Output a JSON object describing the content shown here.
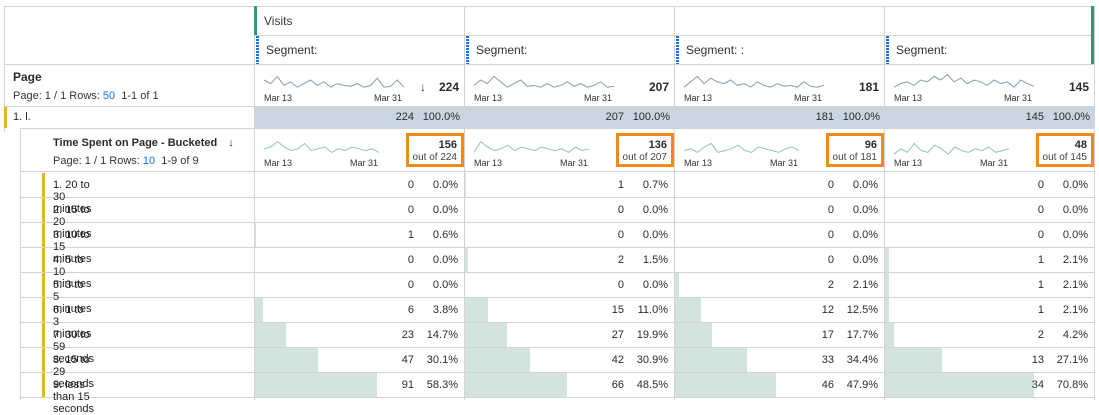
{
  "header": {
    "metric": "Visits",
    "segments": [
      {
        "label": "Segment:"
      },
      {
        "label": "Segment:"
      },
      {
        "label": "Segment: :"
      },
      {
        "label": "Segment:"
      }
    ]
  },
  "page_dim": {
    "title": "Page",
    "page_label": "Page: 1 / 1",
    "rows_label": "Rows:",
    "rows_value": "50",
    "range": "1-1 of 1",
    "sort_icon": "arrow-down-icon",
    "totals": [
      "224",
      "207",
      "181",
      "145"
    ],
    "date_start": "Mar 13",
    "date_end": "Mar 31"
  },
  "row1": {
    "label": "1. l.",
    "cells": [
      {
        "num": "224",
        "pct": "100.0%"
      },
      {
        "num": "207",
        "pct": "100.0%"
      },
      {
        "num": "181",
        "pct": "100.0%"
      },
      {
        "num": "145",
        "pct": "100.0%"
      }
    ]
  },
  "sub_dim": {
    "title": "Time Spent on Page - Bucketed",
    "page_label": "Page: 1 / 1",
    "rows_label": "Rows:",
    "rows_value": "10",
    "range": "1-9 of 9",
    "sort_icon": "arrow-down-icon",
    "totals": [
      {
        "num": "156",
        "out": "out of 224"
      },
      {
        "num": "136",
        "out": "out of 207"
      },
      {
        "num": "96",
        "out": "out of 181"
      },
      {
        "num": "48",
        "out": "out of 145"
      }
    ],
    "date_start": "Mar 13",
    "date_end": "Mar 31"
  },
  "rows": [
    {
      "label": "1.  20 to 30 minutes",
      "cells": [
        {
          "num": "0",
          "pct": "0.0%",
          "frac": 0
        },
        {
          "num": "1",
          "pct": "0.7%",
          "frac": 0.007
        },
        {
          "num": "0",
          "pct": "0.0%",
          "frac": 0
        },
        {
          "num": "0",
          "pct": "0.0%",
          "frac": 0
        }
      ]
    },
    {
      "label": "2.  15 to 20 minutes",
      "cells": [
        {
          "num": "0",
          "pct": "0.0%",
          "frac": 0
        },
        {
          "num": "0",
          "pct": "0.0%",
          "frac": 0
        },
        {
          "num": "0",
          "pct": "0.0%",
          "frac": 0
        },
        {
          "num": "0",
          "pct": "0.0%",
          "frac": 0
        }
      ]
    },
    {
      "label": "3.  10 to 15 minutes",
      "cells": [
        {
          "num": "1",
          "pct": "0.6%",
          "frac": 0.006
        },
        {
          "num": "0",
          "pct": "0.0%",
          "frac": 0
        },
        {
          "num": "0",
          "pct": "0.0%",
          "frac": 0
        },
        {
          "num": "0",
          "pct": "0.0%",
          "frac": 0
        }
      ]
    },
    {
      "label": "4.  5 to 10 minutes",
      "cells": [
        {
          "num": "0",
          "pct": "0.0%",
          "frac": 0
        },
        {
          "num": "2",
          "pct": "1.5%",
          "frac": 0.015
        },
        {
          "num": "0",
          "pct": "0.0%",
          "frac": 0
        },
        {
          "num": "1",
          "pct": "2.1%",
          "frac": 0.021
        }
      ]
    },
    {
      "label": "5.  3 to 5 minutes",
      "cells": [
        {
          "num": "0",
          "pct": "0.0%",
          "frac": 0
        },
        {
          "num": "0",
          "pct": "0.0%",
          "frac": 0
        },
        {
          "num": "2",
          "pct": "2.1%",
          "frac": 0.021
        },
        {
          "num": "1",
          "pct": "2.1%",
          "frac": 0.021
        }
      ]
    },
    {
      "label": "6.  1 to 3 minutes",
      "cells": [
        {
          "num": "6",
          "pct": "3.8%",
          "frac": 0.038
        },
        {
          "num": "15",
          "pct": "11.0%",
          "frac": 0.11
        },
        {
          "num": "12",
          "pct": "12.5%",
          "frac": 0.125
        },
        {
          "num": "1",
          "pct": "2.1%",
          "frac": 0.021
        }
      ]
    },
    {
      "label": "7.  30 to 59 seconds",
      "cells": [
        {
          "num": "23",
          "pct": "14.7%",
          "frac": 0.147
        },
        {
          "num": "27",
          "pct": "19.9%",
          "frac": 0.199
        },
        {
          "num": "17",
          "pct": "17.7%",
          "frac": 0.177
        },
        {
          "num": "2",
          "pct": "4.2%",
          "frac": 0.042
        }
      ]
    },
    {
      "label": "8.  15 to 29 seconds",
      "cells": [
        {
          "num": "47",
          "pct": "30.1%",
          "frac": 0.301
        },
        {
          "num": "42",
          "pct": "30.9%",
          "frac": 0.309
        },
        {
          "num": "33",
          "pct": "34.4%",
          "frac": 0.344
        },
        {
          "num": "13",
          "pct": "27.1%",
          "frac": 0.271
        }
      ]
    },
    {
      "label": "9.  less than 15 seconds",
      "cells": [
        {
          "num": "91",
          "pct": "58.3%",
          "frac": 0.583
        },
        {
          "num": "66",
          "pct": "48.5%",
          "frac": 0.485
        },
        {
          "num": "46",
          "pct": "47.9%",
          "frac": 0.479
        },
        {
          "num": "34",
          "pct": "70.8%",
          "frac": 0.708
        }
      ]
    }
  ],
  "colors": {
    "accent_blue": "#1473e6",
    "segment_green": "#2d9d78",
    "row_marker_yellow": "#e1b726",
    "highlight_orange": "#f08a1b",
    "bar_fill": "#d3e3dd",
    "band_fill": "#c9d5e0"
  }
}
